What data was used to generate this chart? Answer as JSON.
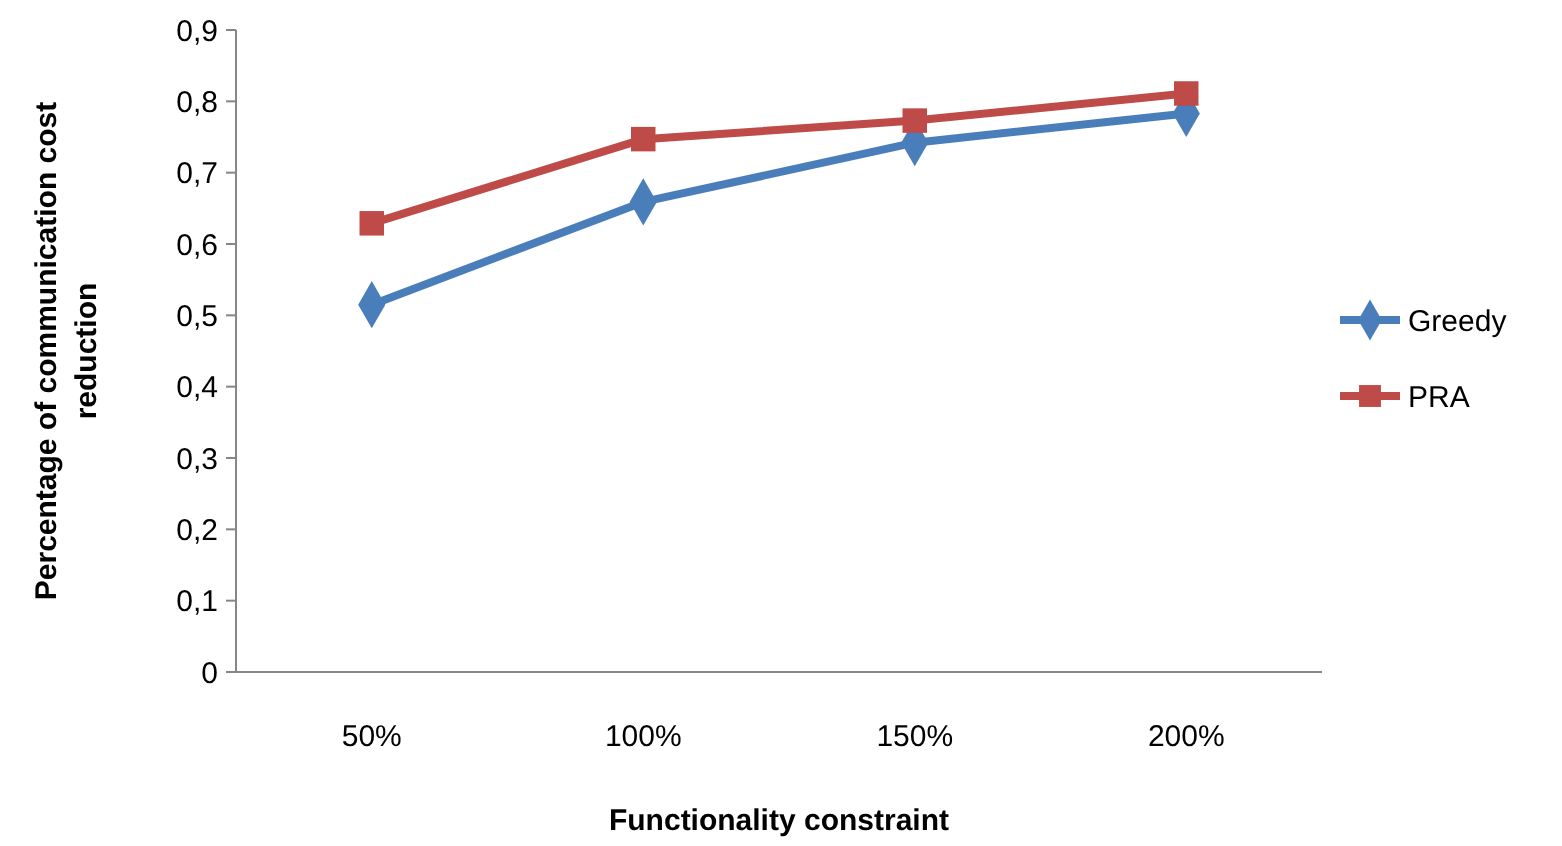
{
  "chart_data": {
    "type": "line",
    "xlabel": "Functionality constraint",
    "ylabel": "Percentage of communication cost reduction",
    "categories": [
      "50%",
      "100%",
      "150%",
      "200%"
    ],
    "series": [
      {
        "name": "Greedy",
        "color": "#4a7ebb",
        "marker": "diamond",
        "values": [
          0.515,
          0.659,
          0.742,
          0.783
        ]
      },
      {
        "name": "PRA",
        "color": "#be4b48",
        "marker": "square",
        "values": [
          0.629,
          0.747,
          0.773,
          0.811
        ]
      }
    ],
    "ylim": [
      0,
      0.9
    ],
    "yticks": [
      0,
      {
        "value": 0.1,
        "label": "0,1"
      },
      {
        "value": 0.2,
        "label": "0,2"
      },
      {
        "value": 0.3,
        "label": "0,3"
      },
      {
        "value": 0.4,
        "label": "0,4"
      },
      {
        "value": 0.5,
        "label": "0,5"
      },
      {
        "value": 0.6,
        "label": "0,6"
      },
      {
        "value": 0.7,
        "label": "0,7"
      },
      {
        "value": 0.8,
        "label": "0,8"
      },
      {
        "value": 0.9,
        "label": "0,9"
      }
    ],
    "grid": false,
    "legend": "right"
  }
}
